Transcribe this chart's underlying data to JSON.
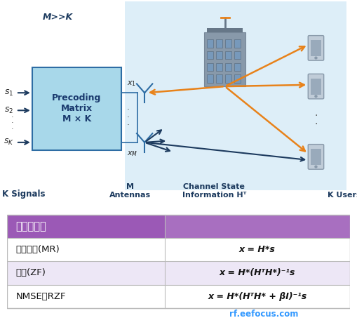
{
  "bg_color": "#ffffff",
  "diagram_bg": "#ddeef8",
  "box_fill": "#a8d8ea",
  "box_edge": "#2e6da4",
  "box_text": "Precoding\nMatrix\nM × K",
  "box_text_color": "#1a3a6e",
  "label_mkk": "M>>K",
  "label_k_signals": "K Signals",
  "label_m_antennas": "M\nAntennas",
  "label_channel": "Channel State\nInformation Hᵀ",
  "label_k_users": "K Users",
  "table_header": "预编码类型",
  "table_header_bg": "#9b59b6",
  "table_header_right_bg": "#a86fc0",
  "table_header_color": "#ffffff",
  "table_row_labels": [
    "最大比率(MR)",
    "迫零(ZF)",
    "NMSE或RZF"
  ],
  "table_row_formulas_display": [
    "x = H*s",
    "x = H*(HᵀH*)⁻¹s",
    "x = H*(HᵀH* + βI)⁻¹s"
  ],
  "table_row_bg": [
    "#ffffff",
    "#ede7f6",
    "#ffffff"
  ],
  "table_border": "#bbbbbb",
  "col_divider": "#bbbbbb",
  "arrow_orange": "#e8821a",
  "arrow_dark": "#1c3a5e",
  "signal_color": "#1c3a5e",
  "watermark": "rf.eefocus.com",
  "watermark_color": "#3399ff",
  "building_body": "#8899aa",
  "building_dark": "#667788",
  "building_window": "#7799bb",
  "phone_body": "#c0ccd8",
  "phone_screen": "#99aabb"
}
